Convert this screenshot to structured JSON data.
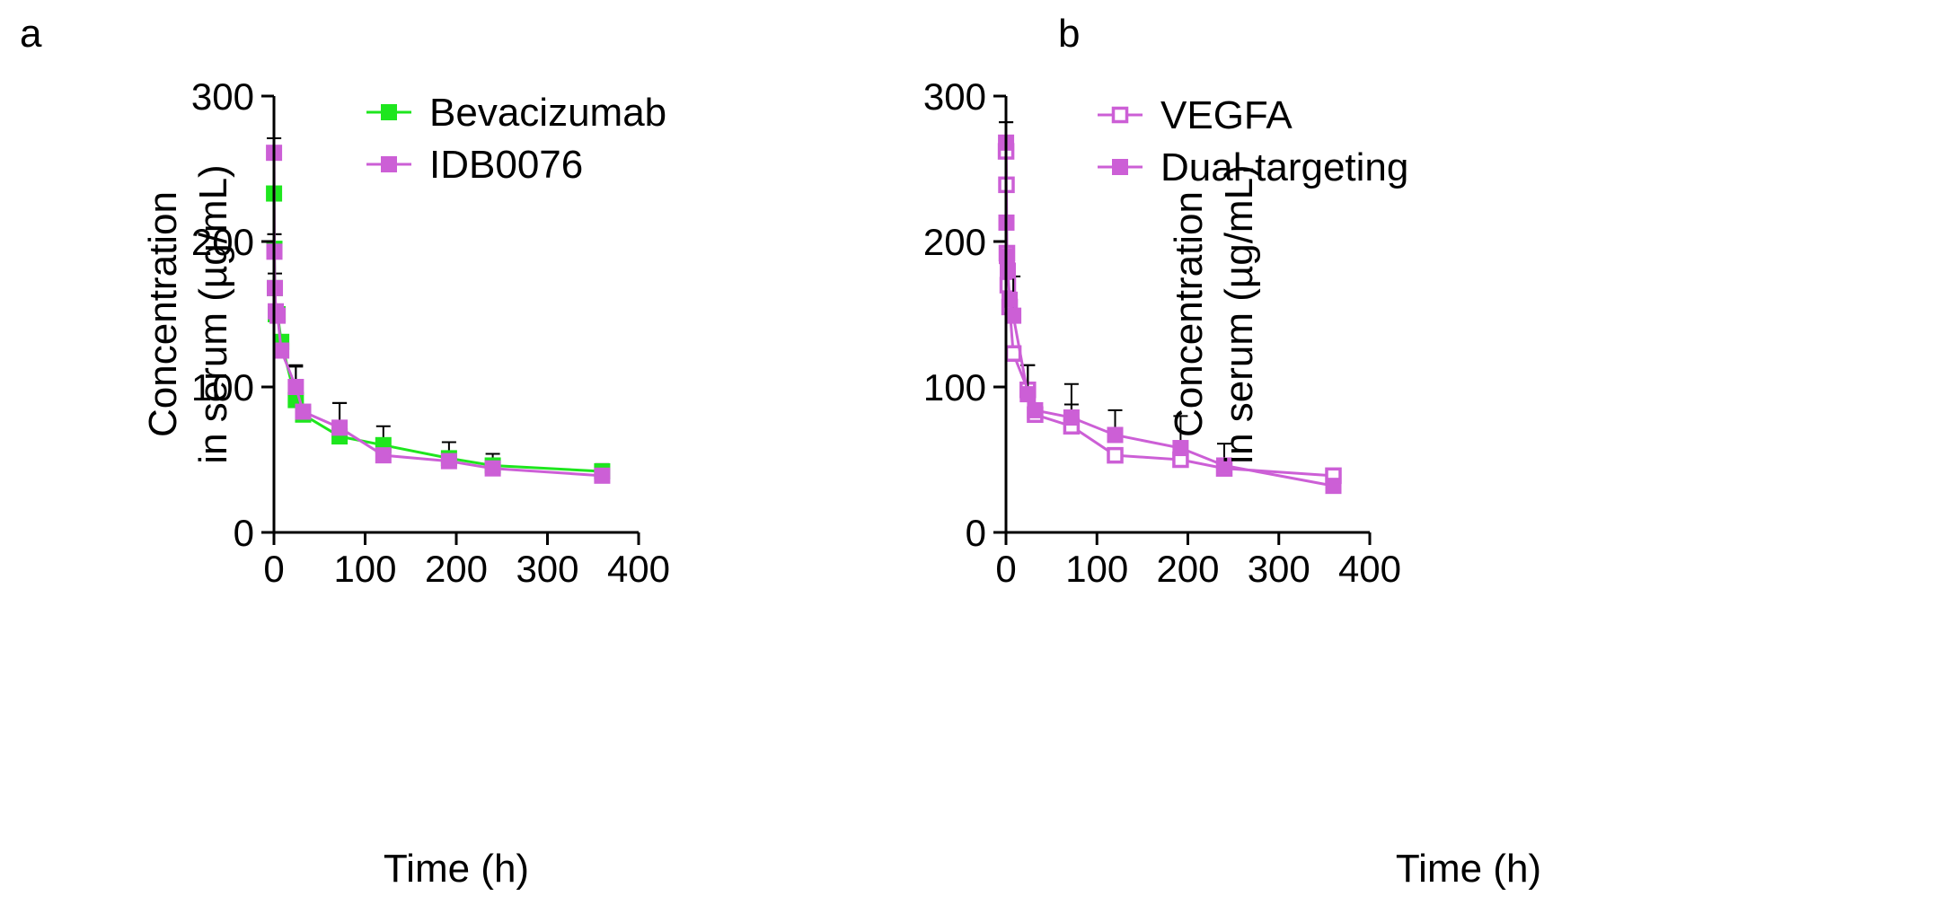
{
  "figure": {
    "panels": [
      "a",
      "b"
    ]
  },
  "chart_data": [
    {
      "panel": "a",
      "type": "line",
      "xlabel": "Time (h)",
      "ylabel_line1": "Concentration",
      "ylabel_line2": "in serum (µg/mL)",
      "xlim": [
        0,
        400
      ],
      "ylim": [
        0,
        300
      ],
      "xticks": [
        0,
        100,
        200,
        300,
        400
      ],
      "yticks": [
        0,
        100,
        200,
        300
      ],
      "legend_position": "top-right",
      "series": [
        {
          "name": "IDB0076",
          "color": "#CC5FD6",
          "marker": "square-filled",
          "x": [
            0.083,
            0.5,
            1,
            2,
            4,
            8,
            24,
            32,
            72,
            120,
            192,
            240,
            360
          ],
          "y": [
            261,
            193,
            168,
            152,
            149,
            125,
            100,
            83,
            72,
            53,
            49,
            44,
            39
          ],
          "err": [
            10,
            12,
            10,
            0,
            0,
            0,
            14,
            0,
            17,
            0,
            0,
            0,
            0
          ]
        },
        {
          "name": "Bevacizumab",
          "color": "#1EE61E",
          "marker": "square-filled",
          "x": [
            0.083,
            0.5,
            1,
            2,
            4,
            8,
            24,
            32,
            72,
            120,
            192,
            240,
            360
          ],
          "y": [
            233,
            195,
            168,
            150,
            150,
            131,
            91,
            81,
            66,
            60,
            51,
            46,
            42
          ],
          "err": [
            38,
            10,
            0,
            0,
            0,
            0,
            24,
            0,
            23,
            13,
            11,
            8,
            5
          ]
        }
      ]
    },
    {
      "panel": "b",
      "type": "line",
      "xlabel": "Time (h)",
      "ylabel_line1": "Concentration",
      "ylabel_line2": "in serum (µg/mL)",
      "xlim": [
        0,
        400
      ],
      "ylim": [
        0,
        300
      ],
      "xticks": [
        0,
        100,
        200,
        300,
        400
      ],
      "yticks": [
        0,
        100,
        200,
        300
      ],
      "legend_position": "top-right",
      "series": [
        {
          "name": "VEGFA",
          "color": "#CC5FD6",
          "marker": "square-open",
          "x": [
            0.083,
            0.5,
            1,
            2,
            4,
            8,
            24,
            32,
            72,
            120,
            192,
            240,
            360
          ],
          "y": [
            262,
            239,
            192,
            170,
            155,
            123,
            98,
            81,
            73,
            53,
            50,
            44,
            39
          ],
          "err": [
            20,
            0,
            0,
            0,
            0,
            0,
            17,
            0,
            15,
            0,
            0,
            0,
            0
          ]
        },
        {
          "name": "Dual-targeting",
          "color": "#CC5FD6",
          "marker": "square-filled",
          "x": [
            0.083,
            0.5,
            1,
            2,
            4,
            8,
            24,
            32,
            72,
            120,
            192,
            240,
            360
          ],
          "y": [
            268,
            213,
            190,
            180,
            160,
            149,
            95,
            84,
            79,
            67,
            58,
            46,
            32
          ],
          "err": [
            14,
            0,
            0,
            0,
            0,
            27,
            20,
            0,
            23,
            17,
            22,
            15,
            0
          ]
        }
      ]
    }
  ]
}
